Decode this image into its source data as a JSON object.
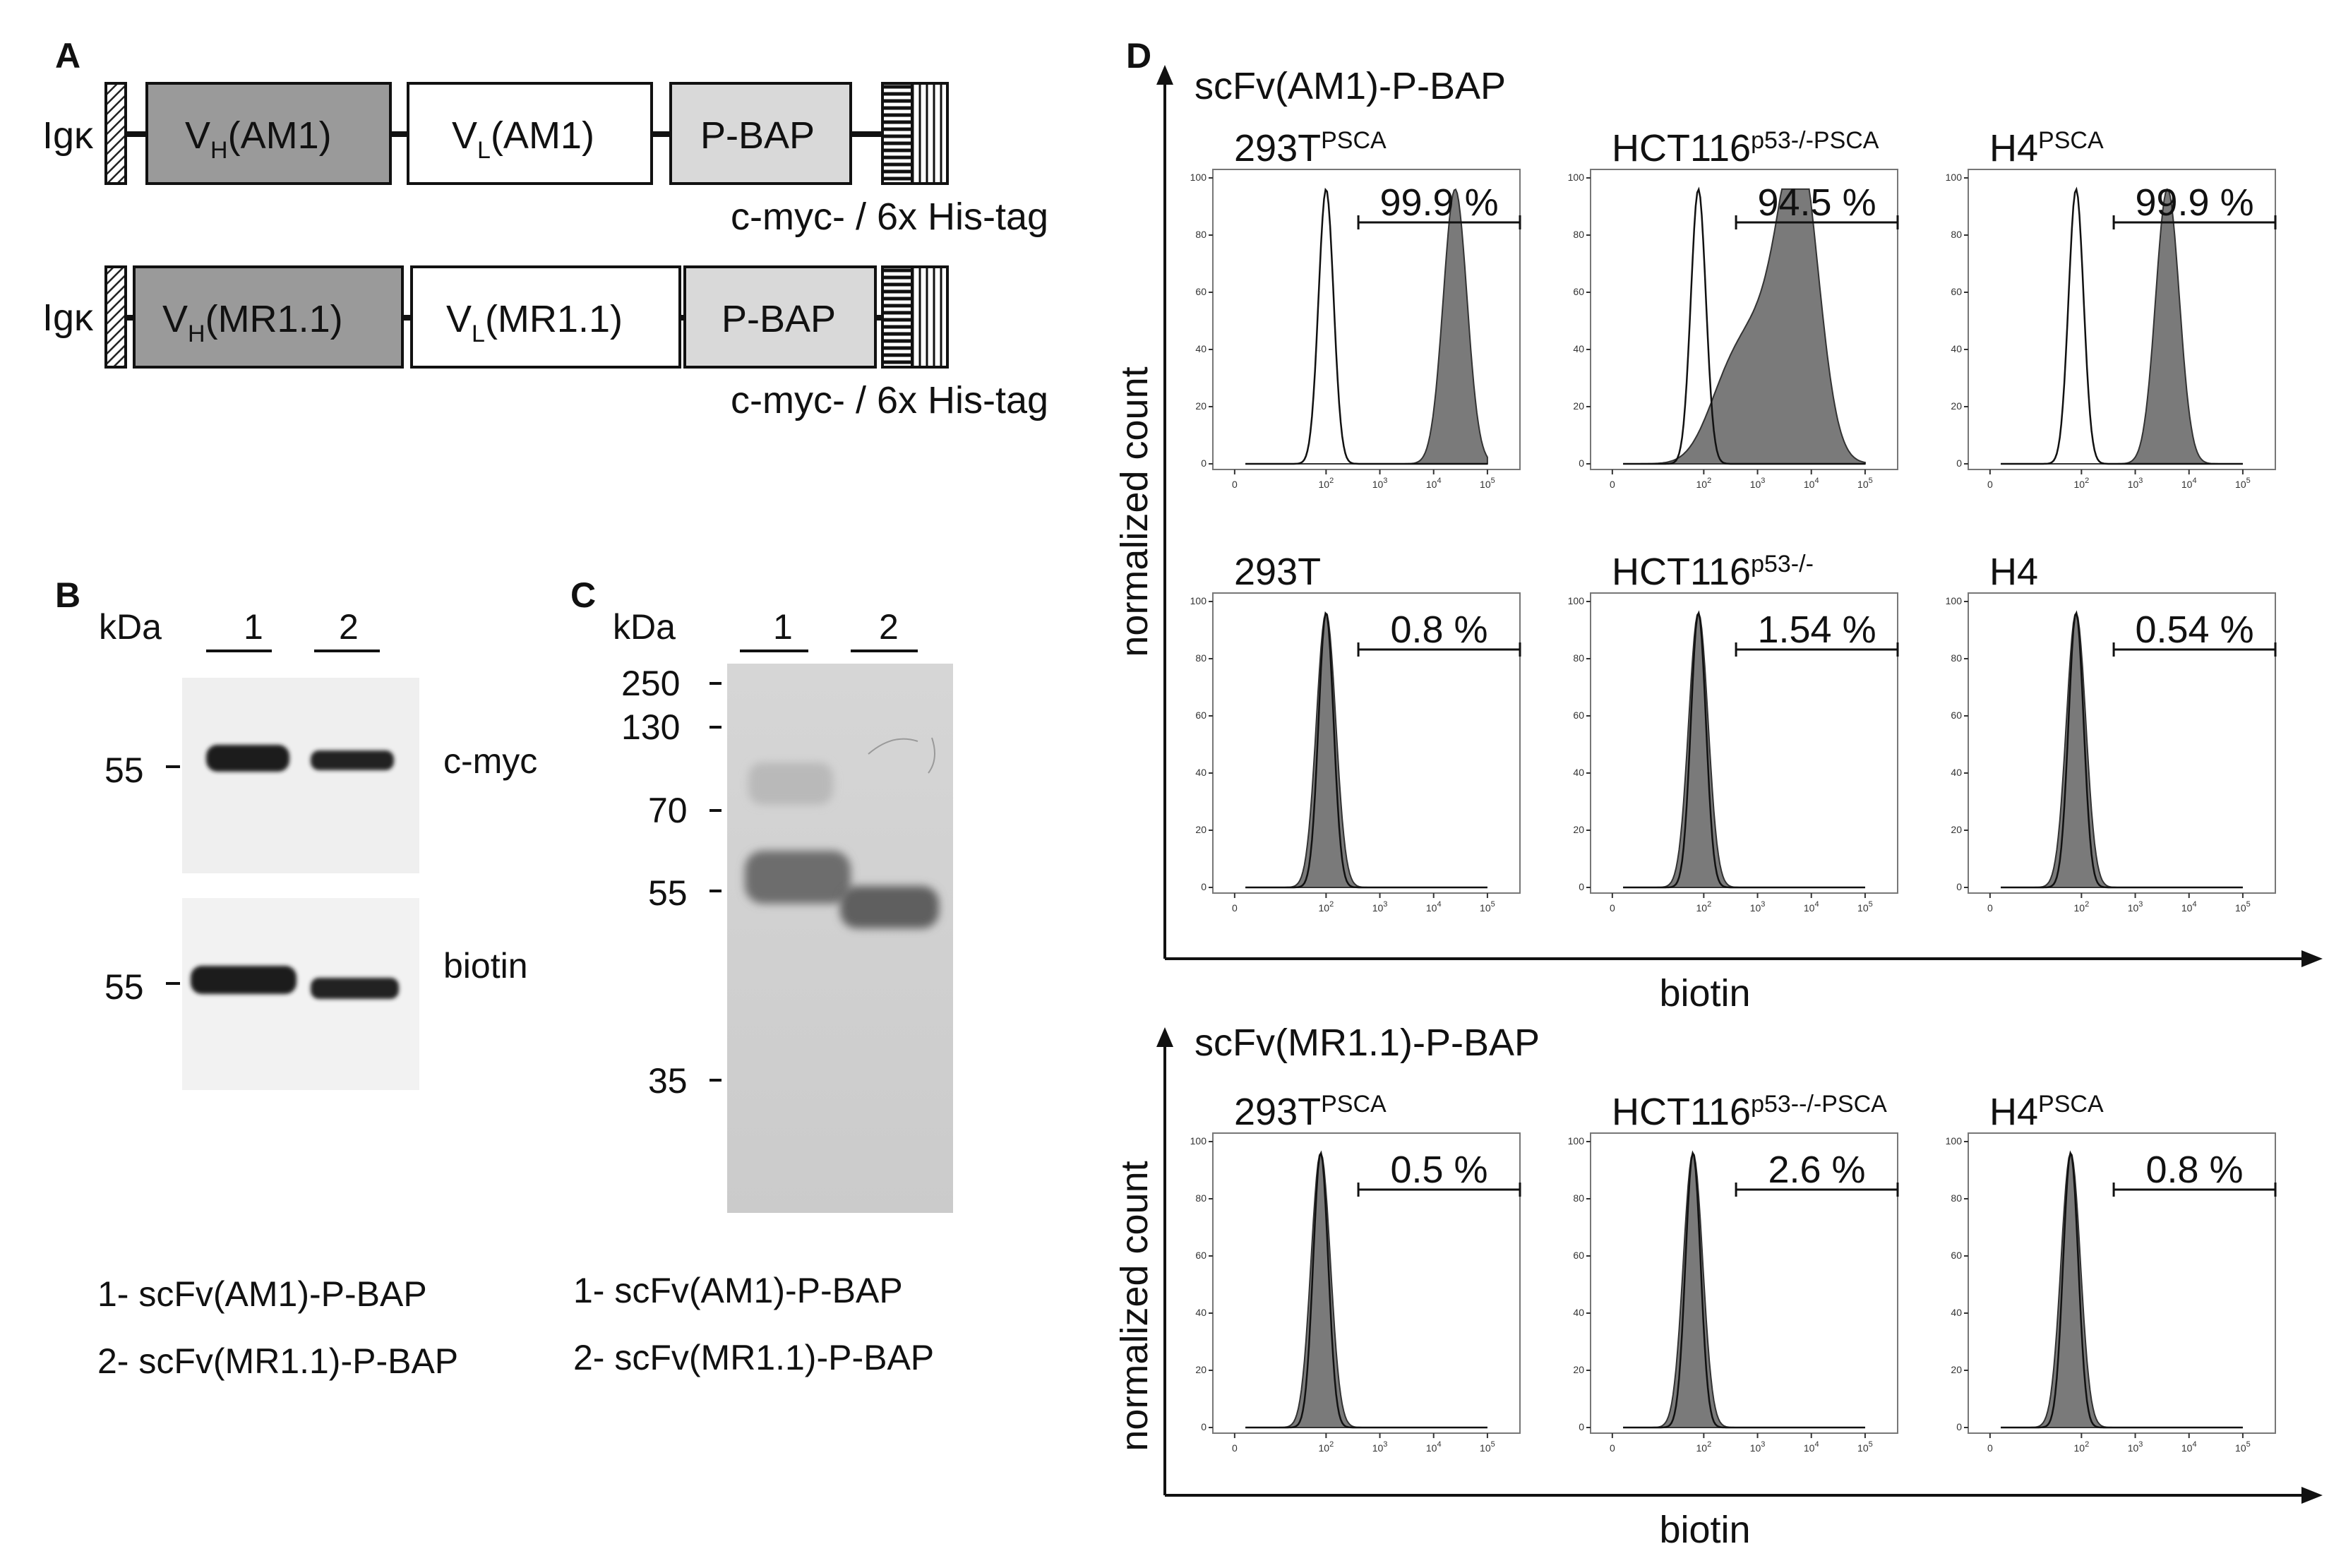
{
  "panels": {
    "A": "A",
    "B": "B",
    "C": "C",
    "D": "D"
  },
  "panelA": {
    "construct1": {
      "leader": "Igκ",
      "vh_base": "V",
      "vh_sub": "H",
      "vh_name": "(AM1)",
      "vl_base": "V",
      "vl_sub": "L",
      "vl_name": "(AM1)",
      "tag": "P-BAP",
      "tags_note": "c-myc- / 6x His-tag"
    },
    "construct2": {
      "leader": "Igκ",
      "vh_base": "V",
      "vh_sub": "H",
      "vh_name": "(MR1.1)",
      "vl_base": "V",
      "vl_sub": "L",
      "vl_name": "(MR1.1)",
      "tag": "P-BAP",
      "tags_note": "c-myc- / 6x His-tag"
    }
  },
  "panelB": {
    "kda": "kDa",
    "lanes": [
      "1",
      "2"
    ],
    "blot1": {
      "marker": "55",
      "label": "c-myc"
    },
    "blot2": {
      "marker": "55",
      "label": "biotin"
    },
    "legend": [
      "1- scFv(AM1)-P-BAP",
      "2- scFv(MR1.1)-P-BAP"
    ]
  },
  "panelC": {
    "kda": "kDa",
    "lanes": [
      "1",
      "2"
    ],
    "markers": [
      "250",
      "130",
      "70",
      "55",
      "35"
    ],
    "legend": [
      "1- scFv(AM1)-P-BAP",
      "2- scFv(MR1.1)-P-BAP"
    ]
  },
  "panelD": {
    "ylabel": "normalized count",
    "xlabel": "biotin",
    "yticks": [
      "0",
      "20",
      "40",
      "60",
      "80",
      "100"
    ],
    "xticks": [
      "0",
      "10",
      "10",
      "10",
      "10"
    ],
    "xtick_exp": [
      "",
      "2",
      "3",
      "4",
      "5"
    ],
    "groups": [
      {
        "title": "scFv(AM1)-P-BAP",
        "rows": [
          [
            {
              "name": "293T",
              "sup": "PSCA",
              "pct": "99.9 %"
            },
            {
              "name": "HCT116",
              "sup": "p53-/-PSCA",
              "pct": "94.5 %"
            },
            {
              "name": "H4",
              "sup": "PSCA",
              "pct": "99.9 %"
            }
          ],
          [
            {
              "name": "293T",
              "sup": "",
              "pct": "0.8 %"
            },
            {
              "name": "HCT116",
              "sup": "p53-/-",
              "pct": "1.54 %"
            },
            {
              "name": "H4",
              "sup": "",
              "pct": "0.54 %"
            }
          ]
        ]
      },
      {
        "title": "scFv(MR1.1)-P-BAP",
        "rows": [
          [
            {
              "name": "293T",
              "sup": "PSCA",
              "pct": "0.5 %"
            },
            {
              "name": "HCT116",
              "sup": "p53--/-PSCA",
              "pct": "2.6 %"
            },
            {
              "name": "H4",
              "sup": "PSCA",
              "pct": "0.8 %"
            }
          ]
        ]
      }
    ]
  },
  "chart_data": [
    {
      "type": "histogram",
      "title": "293T PSCA",
      "group": "scFv(AM1)-P-BAP",
      "gate_percent": 99.9,
      "stained_peak_log10": 4.4,
      "control_peak_log10": 2.0,
      "ylim": [
        0,
        100
      ]
    },
    {
      "type": "histogram",
      "title": "HCT116 p53-/-PSCA",
      "group": "scFv(AM1)-P-BAP",
      "gate_percent": 94.5,
      "stained_peak_log10": 3.8,
      "control_peak_log10": 1.9,
      "ylim": [
        0,
        100
      ]
    },
    {
      "type": "histogram",
      "title": "H4 PSCA",
      "group": "scFv(AM1)-P-BAP",
      "gate_percent": 99.9,
      "stained_peak_log10": 3.6,
      "control_peak_log10": 1.9,
      "ylim": [
        0,
        100
      ]
    },
    {
      "type": "histogram",
      "title": "293T",
      "group": "scFv(AM1)-P-BAP",
      "gate_percent": 0.8,
      "stained_peak_log10": 2.0,
      "control_peak_log10": 2.0,
      "ylim": [
        0,
        100
      ]
    },
    {
      "type": "histogram",
      "title": "HCT116 p53-/-",
      "group": "scFv(AM1)-P-BAP",
      "gate_percent": 1.54,
      "stained_peak_log10": 1.9,
      "control_peak_log10": 1.9,
      "ylim": [
        0,
        100
      ]
    },
    {
      "type": "histogram",
      "title": "H4",
      "group": "scFv(AM1)-P-BAP",
      "gate_percent": 0.54,
      "stained_peak_log10": 1.9,
      "control_peak_log10": 1.9,
      "ylim": [
        0,
        100
      ]
    },
    {
      "type": "histogram",
      "title": "293T PSCA",
      "group": "scFv(MR1.1)-P-BAP",
      "gate_percent": 0.5,
      "stained_peak_log10": 1.9,
      "control_peak_log10": 1.9,
      "ylim": [
        0,
        100
      ]
    },
    {
      "type": "histogram",
      "title": "HCT116 p53--/-PSCA",
      "group": "scFv(MR1.1)-P-BAP",
      "gate_percent": 2.6,
      "stained_peak_log10": 1.8,
      "control_peak_log10": 1.8,
      "ylim": [
        0,
        100
      ]
    },
    {
      "type": "histogram",
      "title": "H4 PSCA",
      "group": "scFv(MR1.1)-P-BAP",
      "gate_percent": 0.8,
      "stained_peak_log10": 1.8,
      "control_peak_log10": 1.8,
      "ylim": [
        0,
        100
      ]
    }
  ]
}
